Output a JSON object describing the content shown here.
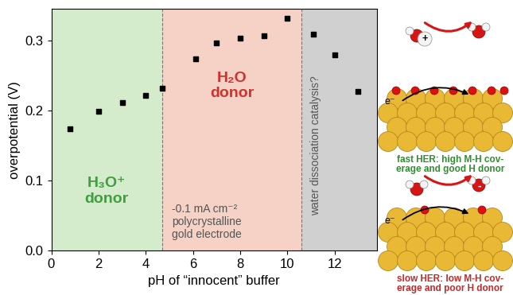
{
  "chart_data": {
    "type": "scatter",
    "x_label": "pH of “innocent” buffer",
    "y_label": "overpotential (V)",
    "x": [
      0.8,
      2.0,
      3.0,
      4.0,
      4.7,
      6.1,
      7.0,
      8.0,
      9.0,
      10.0,
      11.1,
      12.0,
      13.0
    ],
    "values": [
      0.174,
      0.199,
      0.211,
      0.221,
      0.232,
      0.274,
      0.296,
      0.303,
      0.307,
      0.331,
      0.309,
      0.279,
      0.227
    ],
    "color": "#000000",
    "marker": "square",
    "xlim": [
      0,
      13.8
    ],
    "ylim": [
      0,
      0.345
    ],
    "xticks": [
      0,
      2,
      4,
      6,
      8,
      10,
      12
    ],
    "yticks": [
      {
        "value": 0,
        "label": "0.0"
      },
      0.1,
      0.2,
      0.3
    ],
    "regions": [
      {
        "label": "H₃O⁺\ndonor",
        "start": 0,
        "end": 4.7,
        "color": "#d4ebcc"
      },
      {
        "label": "H₂O\ndonor",
        "start": 4.7,
        "end": 10.6,
        "color": "#f5d2c5"
      },
      {
        "label": "water dissociation catalysis?",
        "start": 10.6,
        "end": 13.8,
        "color": "#d0d0d0"
      }
    ],
    "annotations": [
      "-0.1 mA cm⁻²\npolycrystalline\ngold electrode"
    ]
  },
  "illustration": {
    "electron": "e⁻",
    "panels": [
      {
        "caption": "fast HER: high M-H cov-\nerage and good H donor",
        "ion_charge": "+"
      },
      {
        "caption": "slow HER: low M-H cov-\nerage and poor H donor",
        "ion_charge": "-"
      }
    ]
  }
}
